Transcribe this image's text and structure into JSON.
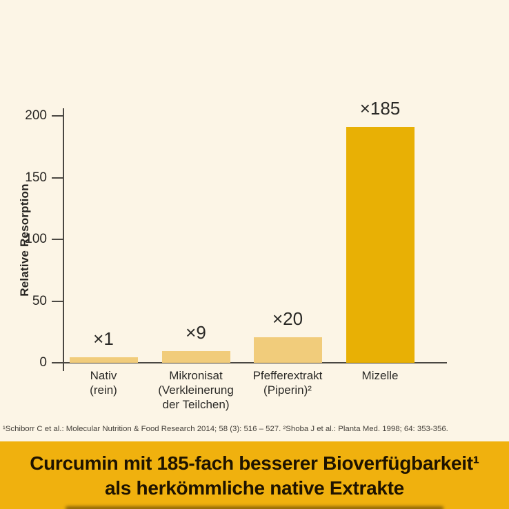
{
  "chart_data": {
    "type": "bar",
    "title": "",
    "xlabel": "",
    "ylabel": "Relative Resorption",
    "categories": [
      [
        "Nativ",
        "(rein)"
      ],
      [
        "Mikronisat",
        "(Verkleinerung",
        "der Teilchen)"
      ],
      [
        "Pfefferextrakt",
        "(Piperin)²"
      ],
      [
        "Mizelle"
      ]
    ],
    "values": [
      1,
      9,
      20,
      185
    ],
    "bar_labels": [
      "×1",
      "×9",
      "×20",
      "×185"
    ],
    "yticks": [
      0,
      50,
      100,
      150,
      200
    ],
    "ylim": [
      0,
      200
    ],
    "grid": false,
    "legend": null,
    "bar_colors": [
      "#F1CC7B",
      "#F1CC7B",
      "#F1CC7B",
      "#E8B005"
    ]
  },
  "footnote": {
    "text": "¹Schiborr C et al.: Molecular Nutrition & Food Research 2014; 58 (3): 516 – 527. ²Shoba J et al.: Planta Med. 1998; 64: 353-356."
  },
  "banner": {
    "line1": "Curcumin mit 185-fach besserer Bioverfügbarkeit¹",
    "line2": "als herkömmliche native Extrakte"
  },
  "colors": {
    "background": "#FCF5E6",
    "axis": "#4A4742",
    "text": "#262421",
    "footnote_text": "#44403A",
    "banner_background": "#F0B10E",
    "banner_text": "#1E1300",
    "bar_light": "#F1CC7B",
    "bar_accent": "#E8B005"
  }
}
